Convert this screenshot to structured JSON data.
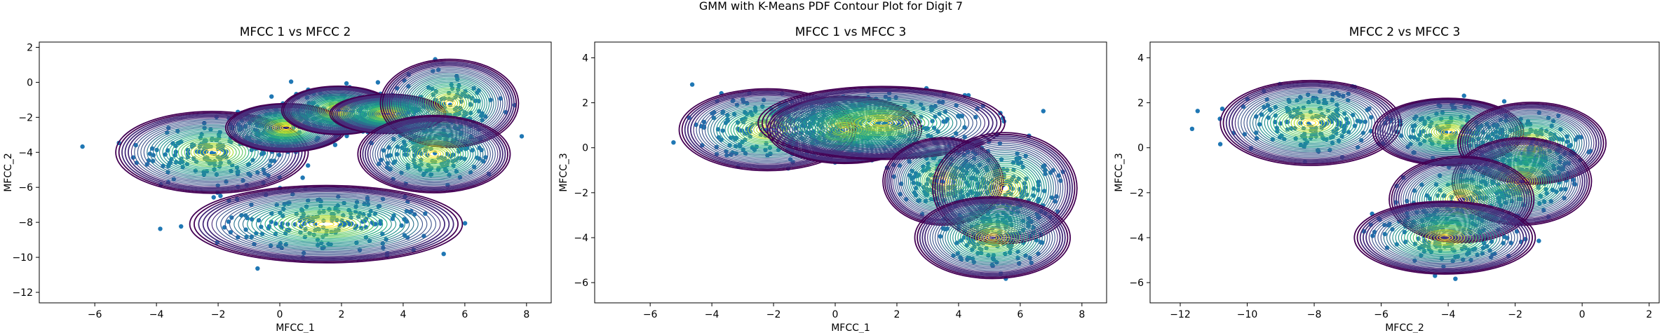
{
  "figure": {
    "suptitle": "GMM with K-Means PDF Contour Plot for Digit 7"
  },
  "colors": {
    "points": "#1f77b4",
    "contour_low": "#440154",
    "contour_mid": "#21918c",
    "contour_high": "#fde725"
  },
  "chart_data": [
    {
      "type": "scatter",
      "title": "MFCC 1 vs MFCC 2",
      "xlabel": "MFCC_1",
      "ylabel": "MFCC_2",
      "xlim": [
        -7.8,
        8.8
      ],
      "ylim": [
        -12.6,
        2.3
      ],
      "xticks": [
        -6,
        -4,
        -2,
        0,
        2,
        4,
        6,
        8
      ],
      "yticks": [
        -12,
        -10,
        -8,
        -6,
        -4,
        -2,
        0,
        2
      ],
      "components": [
        {
          "mx": -2.2,
          "my": -4.0,
          "sx": 1.2,
          "sy": 0.9,
          "spread": 2.6,
          "n": 170
        },
        {
          "mx": 0.2,
          "my": -2.6,
          "sx": 0.85,
          "sy": 0.6,
          "spread": 2.3,
          "n": 120
        },
        {
          "mx": 1.9,
          "my": -1.6,
          "sx": 0.8,
          "sy": 0.6,
          "spread": 2.3,
          "n": 100
        },
        {
          "mx": 3.5,
          "my": -1.8,
          "sx": 0.75,
          "sy": 0.45,
          "spread": 2.5,
          "n": 120
        },
        {
          "mx": 5.5,
          "my": -1.2,
          "sx": 0.8,
          "sy": 0.9,
          "spread": 2.8,
          "n": 110
        },
        {
          "mx": 5.0,
          "my": -4.1,
          "sx": 0.95,
          "sy": 0.85,
          "spread": 2.6,
          "n": 150
        },
        {
          "mx": 1.5,
          "my": -8.1,
          "sx": 1.7,
          "sy": 0.85,
          "spread": 2.6,
          "n": 190
        }
      ]
    },
    {
      "type": "scatter",
      "title": "MFCC 1 vs MFCC 3",
      "xlabel": "MFCC_1",
      "ylabel": "MFCC_3",
      "xlim": [
        -7.8,
        8.8
      ],
      "ylim": [
        -6.9,
        4.7
      ],
      "xticks": [
        -6,
        -4,
        -2,
        0,
        2,
        4,
        6,
        8
      ],
      "yticks": [
        -6,
        -4,
        -2,
        0,
        2,
        4
      ],
      "components": [
        {
          "mx": -2.2,
          "my": 0.8,
          "sx": 1.1,
          "sy": 0.7,
          "spread": 2.6,
          "n": 170
        },
        {
          "mx": 0.3,
          "my": 0.8,
          "sx": 1.0,
          "sy": 0.6,
          "spread": 2.5,
          "n": 120
        },
        {
          "mx": 1.5,
          "my": 1.1,
          "sx": 1.6,
          "sy": 0.65,
          "spread": 2.5,
          "n": 200
        },
        {
          "mx": 3.5,
          "my": -1.5,
          "sx": 0.75,
          "sy": 0.75,
          "spread": 2.6,
          "n": 140
        },
        {
          "mx": 5.5,
          "my": -1.8,
          "sx": 0.9,
          "sy": 0.95,
          "spread": 2.6,
          "n": 140
        },
        {
          "mx": 5.1,
          "my": -4.0,
          "sx": 0.9,
          "sy": 0.65,
          "spread": 2.8,
          "n": 140
        }
      ]
    },
    {
      "type": "scatter",
      "title": "MFCC 2 vs MFCC 3",
      "xlabel": "MFCC_2",
      "ylabel": "MFCC_3",
      "xlim": [
        -12.9,
        2.3
      ],
      "ylim": [
        -6.9,
        4.7
      ],
      "xticks": [
        -12,
        -10,
        -8,
        -6,
        -4,
        -2,
        0,
        2
      ],
      "yticks": [
        -6,
        -4,
        -2,
        0,
        2,
        4
      ],
      "components": [
        {
          "mx": -8.1,
          "my": 1.1,
          "sx": 1.0,
          "sy": 0.7,
          "spread": 2.7,
          "n": 170
        },
        {
          "mx": -4.0,
          "my": 0.7,
          "sx": 0.9,
          "sy": 0.6,
          "spread": 2.5,
          "n": 130
        },
        {
          "mx": -1.5,
          "my": 0.2,
          "sx": 0.85,
          "sy": 0.7,
          "spread": 2.6,
          "n": 130
        },
        {
          "mx": -1.8,
          "my": -1.5,
          "sx": 0.8,
          "sy": 0.75,
          "spread": 2.6,
          "n": 140
        },
        {
          "mx": -3.6,
          "my": -2.3,
          "sx": 0.9,
          "sy": 0.8,
          "spread": 2.4,
          "n": 110
        },
        {
          "mx": -4.1,
          "my": -4.0,
          "sx": 1.0,
          "sy": 0.6,
          "spread": 2.7,
          "n": 150
        }
      ]
    }
  ]
}
